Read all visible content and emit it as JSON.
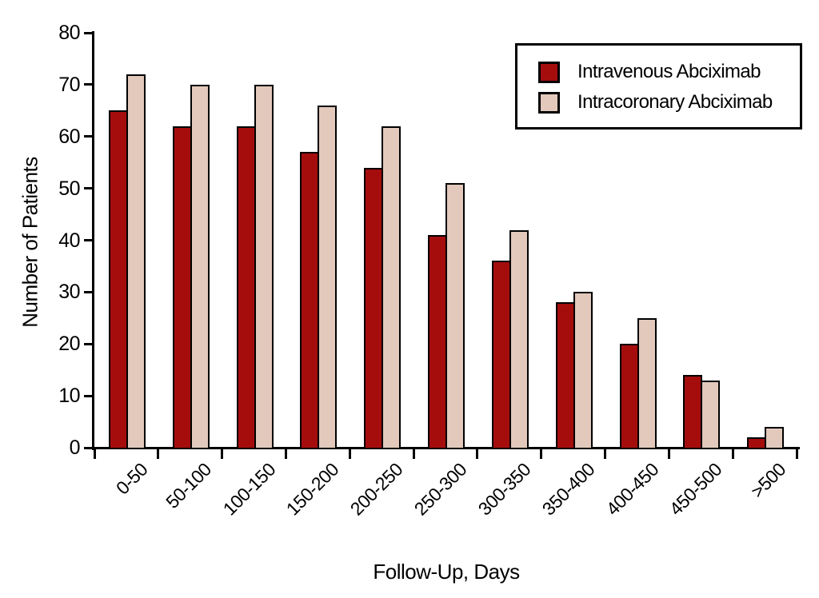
{
  "chart_data": {
    "type": "bar",
    "title": "",
    "xlabel": "Follow-Up, Days",
    "ylabel": "Number of Patients",
    "categories": [
      "0-50",
      "50-100",
      "100-150",
      "150-200",
      "200-250",
      "250-300",
      "300-350",
      "350-400",
      "400-450",
      "450-500",
      ">500"
    ],
    "series": [
      {
        "name": "Intravenous Abciximab",
        "color": "#A50D0D",
        "values": [
          65,
          62,
          62,
          57,
          54,
          41,
          36,
          28,
          20,
          14,
          2
        ]
      },
      {
        "name": "Intracoronary Abciximab",
        "color": "#E2C9BC",
        "values": [
          72,
          70,
          70,
          66,
          62,
          51,
          42,
          30,
          25,
          13,
          4
        ]
      }
    ],
    "ylim": [
      0,
      80
    ],
    "yticks": [
      0,
      10,
      20,
      30,
      40,
      50,
      60,
      70,
      80
    ],
    "grid": false,
    "legend_position": "top-right",
    "bar_outline_color": "#000000",
    "axis_color": "#000000",
    "background_color": "#FFFFFF"
  }
}
